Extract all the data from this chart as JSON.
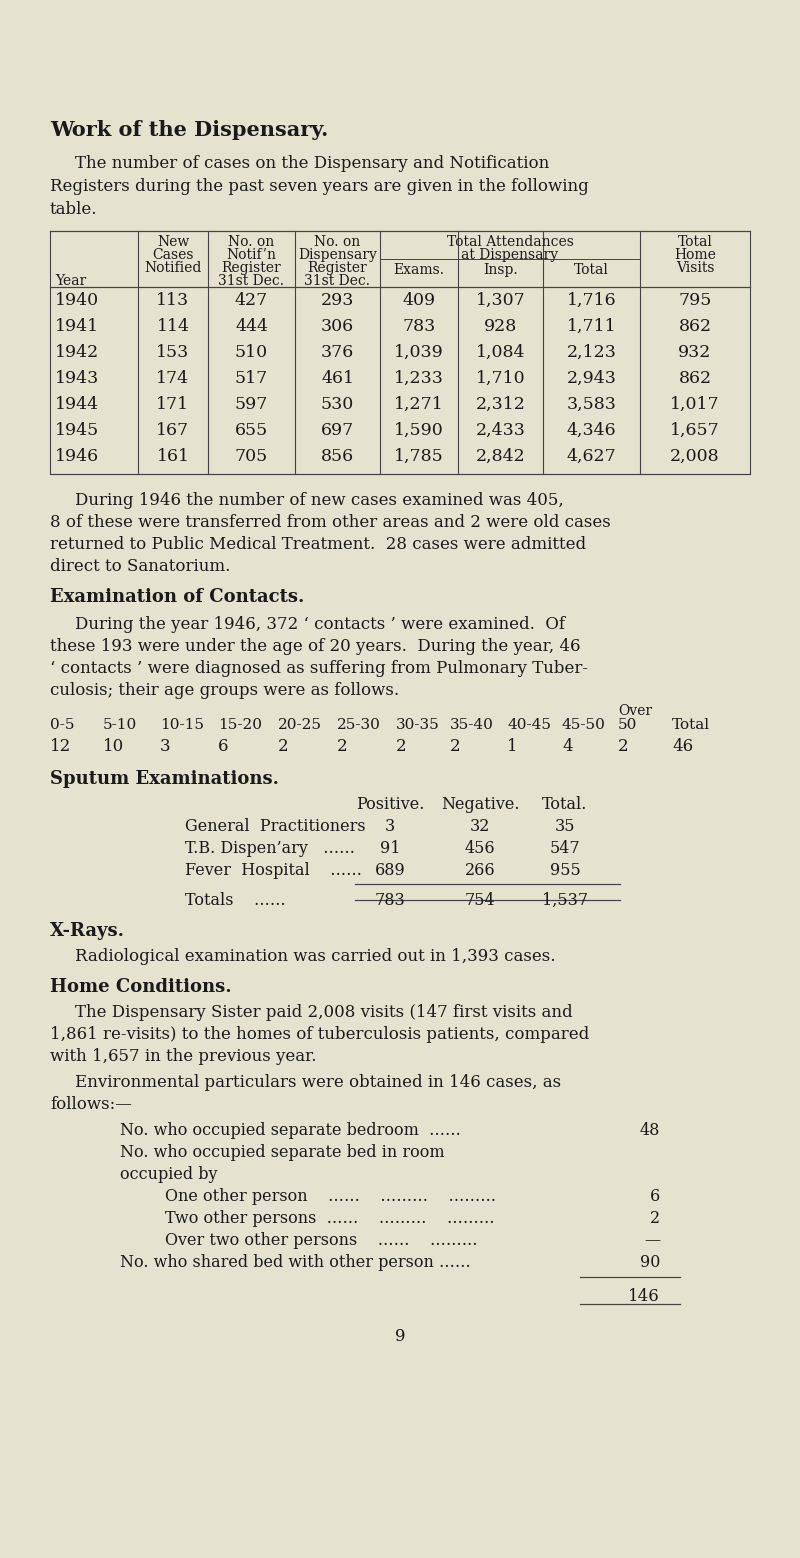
{
  "bg_color": "#e6e2d0",
  "title": "Work of the Dispensary.",
  "intro_text": [
    "The number of cases on the Dispensary and Notification",
    "Registers during the past seven years are given in the following",
    "table."
  ],
  "table_data": [
    [
      "1940",
      "113",
      "427",
      "293",
      "409",
      "1,307",
      "1,716",
      "795"
    ],
    [
      "1941",
      "114",
      "444",
      "306",
      "783",
      "928",
      "1,711",
      "862"
    ],
    [
      "1942",
      "153",
      "510",
      "376",
      "1,039",
      "1,084",
      "2,123",
      "932"
    ],
    [
      "1943",
      "174",
      "517",
      "461",
      "1,233",
      "1,710",
      "2,943",
      "862"
    ],
    [
      "1944",
      "171",
      "597",
      "530",
      "1,271",
      "2,312",
      "3,583",
      "1,017"
    ],
    [
      "1945",
      "167",
      "655",
      "697",
      "1,590",
      "2,433",
      "4,346",
      "1,657"
    ],
    [
      "1946",
      "161",
      "705",
      "856",
      "1,785",
      "2,842",
      "4,627",
      "2,008"
    ]
  ],
  "para1": [
    "During 1946 the number of new cases examined was 405,",
    "8 of these were transferred from other areas and 2 were old cases",
    "returned to Public Medical Treatment.  28 cases were admitted",
    "direct to Sanatorium."
  ],
  "section2_title": "Examination of Contacts.",
  "para2": [
    "During the year 1946, 372 ‘ contacts ’ were examined.  Of",
    "these 193 were under the age of 20 years.  During the year, 46",
    "‘ contacts ’ were diagnosed as suffering from Pulmonary Tuber-",
    "culosis; their age groups were as follows."
  ],
  "contacts_age_header": [
    "0-5",
    "5-10",
    "10-15",
    "15-20",
    "20-25",
    "25-30",
    "30-35",
    "35-40",
    "40-45",
    "45-50",
    "50",
    "Total"
  ],
  "contacts_age_values": [
    "12",
    "10",
    "3",
    "6",
    "2",
    "2",
    "2",
    "2",
    "1",
    "4",
    "2",
    "46"
  ],
  "contacts_over_label": "Over",
  "section3_title": "Sputum Examinations.",
  "sputum_col_header": [
    "",
    "Positive.",
    "Negative.",
    "Total."
  ],
  "sputum_data": [
    [
      "General  Practitioners",
      "3",
      "32",
      "35"
    ],
    [
      "T.B. Dispen’ary   ……",
      "91",
      "456",
      "547"
    ],
    [
      "Fever  Hospital    ……",
      "689",
      "266",
      "955"
    ]
  ],
  "sputum_totals": [
    "Totals    ……",
    "783",
    "754",
    "1,537"
  ],
  "section4_title": "X-Rays.",
  "para4": "Radiological examination was carried out in 1,393 cases.",
  "section5_title": "Home Conditions.",
  "para5": [
    "The Dispensary Sister paid 2,008 visits (147 first visits and",
    "1,861 re-visits) to the homes of tuberculosis patients, compared",
    "with 1,657 in the previous year."
  ],
  "para6_intro": "Environmental particulars were obtained in 146 cases, as",
  "para6_follows": "follows:—",
  "env_data": [
    [
      "No. who occupied separate bedroom  ……",
      "48",
      0
    ],
    [
      "No. who occupied separate bed in room",
      "",
      0
    ],
    [
      "occupied by",
      "",
      0
    ],
    [
      "One other person    ……    ………    ………",
      "6",
      1
    ],
    [
      "Two other persons  ……    ………    ………",
      "2",
      1
    ],
    [
      "Over two other persons    ……    ………",
      "—",
      1
    ],
    [
      "No. who shared bed with other person ……",
      "90",
      0
    ]
  ],
  "env_total": "146",
  "page_number": "9",
  "text_color": "#1a1a1a",
  "line_color": "#444444"
}
